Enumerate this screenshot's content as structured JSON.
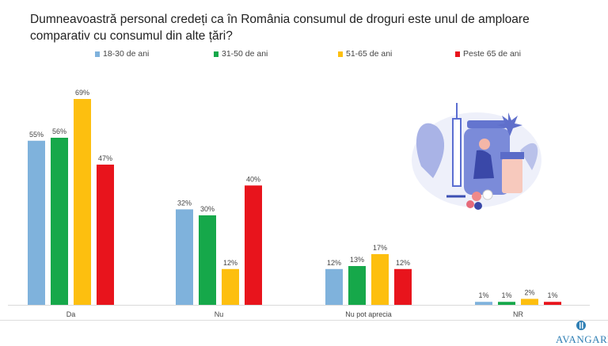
{
  "title": "Dumneavoastră personal credeți ca în România consumul de droguri  este unul de amploare comparativ cu consumul din alte țări?",
  "logo_text": "AVANGARDE",
  "chart_data": {
    "type": "bar",
    "title": "Dumneavoastră personal credeți ca în România consumul de droguri  este unul de amploare comparativ cu consumul din alte țări?",
    "categories": [
      "Da",
      "Nu",
      "Nu pot aprecia",
      "NR"
    ],
    "series": [
      {
        "name": "18-30 de ani",
        "color": "#7fb2dc",
        "values": [
          55,
          32,
          12,
          1
        ]
      },
      {
        "name": "31-50 de ani",
        "color": "#16a84a",
        "values": [
          56,
          30,
          13,
          1
        ]
      },
      {
        "name": "51-65 de ani",
        "color": "#fdbf0f",
        "values": [
          69,
          12,
          17,
          2
        ]
      },
      {
        "name": "Peste 65 de ani",
        "color": "#e8141c",
        "values": [
          47,
          40,
          12,
          1
        ]
      }
    ],
    "value_suffix": "%",
    "ylim": [
      0,
      70
    ],
    "grid": false,
    "legend": "top"
  }
}
